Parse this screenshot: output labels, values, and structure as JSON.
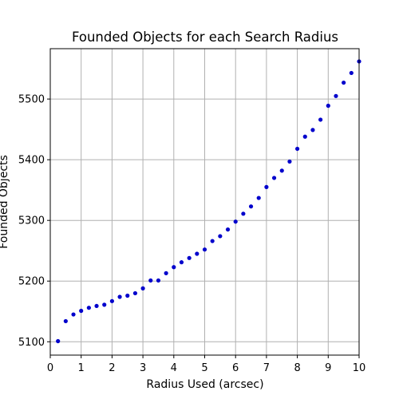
{
  "chart_data": {
    "type": "scatter",
    "title": "Founded Objects for each Search Radius",
    "xlabel": "Radius Used (arcsec)",
    "ylabel": "Founded Objects",
    "xlim": [
      0,
      10
    ],
    "ylim": [
      5078,
      5583
    ],
    "xticks": [
      "0",
      "1",
      "2",
      "3",
      "4",
      "5",
      "6",
      "7",
      "8",
      "9",
      "10"
    ],
    "yticks": [
      "5100",
      "5200",
      "5300",
      "5400",
      "5500"
    ],
    "grid": true,
    "marker_color": "#0000cc",
    "x": [
      0.25,
      0.5,
      0.75,
      1.0,
      1.25,
      1.5,
      1.75,
      2.0,
      2.25,
      2.5,
      2.75,
      3.0,
      3.25,
      3.5,
      3.75,
      4.0,
      4.25,
      4.5,
      4.75,
      5.0,
      5.25,
      5.5,
      5.75,
      6.0,
      6.25,
      6.5,
      6.75,
      7.0,
      7.25,
      7.5,
      7.75,
      8.0,
      8.25,
      8.5,
      8.75,
      9.0,
      9.25,
      9.5,
      9.75,
      10.0
    ],
    "y": [
      5101,
      5134,
      5145,
      5151,
      5156,
      5159,
      5161,
      5167,
      5174,
      5176,
      5180,
      5188,
      5201,
      5201,
      5213,
      5223,
      5231,
      5238,
      5245,
      5252,
      5266,
      5274,
      5285,
      5298,
      5311,
      5323,
      5337,
      5355,
      5370,
      5382,
      5397,
      5418,
      5438,
      5449,
      5466,
      5489,
      5505,
      5527,
      5543,
      5562
    ]
  }
}
